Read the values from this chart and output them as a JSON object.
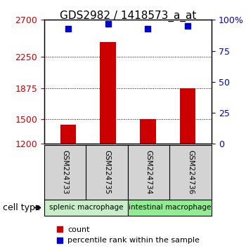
{
  "title": "GDS2982 / 1418573_a_at",
  "samples": [
    "GSM224733",
    "GSM224735",
    "GSM224734",
    "GSM224736"
  ],
  "counts": [
    1430,
    2430,
    1500,
    1870
  ],
  "percentiles": [
    93,
    97,
    93,
    95
  ],
  "ylim_left": [
    1200,
    2700
  ],
  "ylim_right": [
    0,
    100
  ],
  "yticks_left": [
    1200,
    1500,
    1875,
    2250,
    2700
  ],
  "ytick_labels_left": [
    "1200",
    "1500",
    "1875",
    "2250",
    "2700"
  ],
  "yticks_right": [
    0,
    25,
    50,
    75,
    100
  ],
  "ytick_labels_right": [
    "0",
    "25",
    "50",
    "75",
    "100%"
  ],
  "cell_type_groups": [
    {
      "label": "splenic macrophage",
      "samples": [
        0,
        1
      ],
      "color": "#c8f0c8"
    },
    {
      "label": "intestinal macrophage",
      "samples": [
        2,
        3
      ],
      "color": "#90ee90"
    }
  ],
  "bar_color": "#cc0000",
  "scatter_color": "#0000cc",
  "bar_width": 0.4,
  "grid_color": "black",
  "background_color": "#ffffff",
  "label_box_color": "#d3d3d3",
  "legend_count_label": "count",
  "legend_pct_label": "percentile rank within the sample",
  "cell_type_label": "cell type"
}
